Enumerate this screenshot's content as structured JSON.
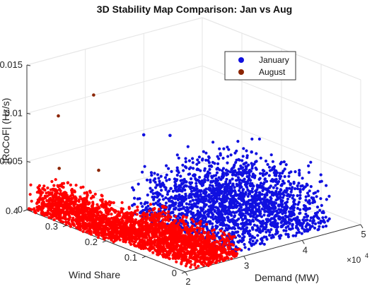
{
  "chart_data": {
    "type": "scatter",
    "projection": "3d",
    "title": "3D Stability Map Comparison: Jan vs Aug",
    "xlabel": "Demand (MW)",
    "ylabel": "Wind Share",
    "zlabel": "|RoCoF| (Hz/s)",
    "x_exponent_label": "×10",
    "x_exponent_power": "4",
    "xlim": [
      2,
      5
    ],
    "ylim": [
      0,
      0.4
    ],
    "zlim": [
      0,
      0.015
    ],
    "x_ticks": [
      {
        "value": 2,
        "label": "2"
      },
      {
        "value": 3,
        "label": "3"
      },
      {
        "value": 4,
        "label": "4"
      },
      {
        "value": 5,
        "label": "5"
      }
    ],
    "y_ticks": [
      {
        "value": 0,
        "label": "0"
      },
      {
        "value": 0.1,
        "label": "0.1"
      },
      {
        "value": 0.2,
        "label": "0.2"
      },
      {
        "value": 0.3,
        "label": "0.3"
      },
      {
        "value": 0.4,
        "label": "0.4"
      }
    ],
    "z_ticks": [
      {
        "value": 0,
        "label": "0"
      },
      {
        "value": 0.005,
        "label": "0.005"
      },
      {
        "value": 0.01,
        "label": "0.01"
      },
      {
        "value": 0.015,
        "label": "0.015"
      }
    ],
    "grid": true,
    "legend_position": "top-right",
    "series": [
      {
        "name": "January",
        "color": "#1010e0",
        "clusters": [
          {
            "x": [
              2.9,
              4.7
            ],
            "y": [
              0.02,
              0.28
            ],
            "z": [
              0,
              0.0048
            ],
            "n": 1900
          },
          {
            "x": [
              3.1,
              4.5
            ],
            "y": [
              0.03,
              0.22
            ],
            "z": [
              0.003,
              0.0072
            ],
            "n": 140
          }
        ],
        "points": [
          {
            "x": 4.95,
            "y": 0.3,
            "z": 0.0118
          },
          {
            "x": 3.05,
            "y": 0.26,
            "z": 0.0083
          },
          {
            "x": 3.5,
            "y": 0.26,
            "z": 0.0075
          },
          {
            "x": 4.15,
            "y": 0.15,
            "z": 0.0065
          }
        ]
      },
      {
        "name": "August",
        "color": "#8b2500",
        "marker_fill": "#ff0000",
        "clusters": [
          {
            "x": [
              2.0,
              2.55
            ],
            "y": [
              0.18,
              0.4
            ],
            "z": [
              0,
              0.0026
            ],
            "n": 1200
          },
          {
            "x": [
              2.15,
              2.95
            ],
            "y": [
              0.0,
              0.22
            ],
            "z": [
              0,
              0.0023
            ],
            "n": 1500
          }
        ],
        "points": [
          {
            "x": 2.6,
            "y": 0.32,
            "z": 0.0122
          },
          {
            "x": 2.2,
            "y": 0.35,
            "z": 0.0102
          },
          {
            "x": 2.55,
            "y": 0.3,
            "z": 0.0048
          },
          {
            "x": 2.35,
            "y": 0.37,
            "z": 0.0042
          }
        ]
      }
    ]
  }
}
